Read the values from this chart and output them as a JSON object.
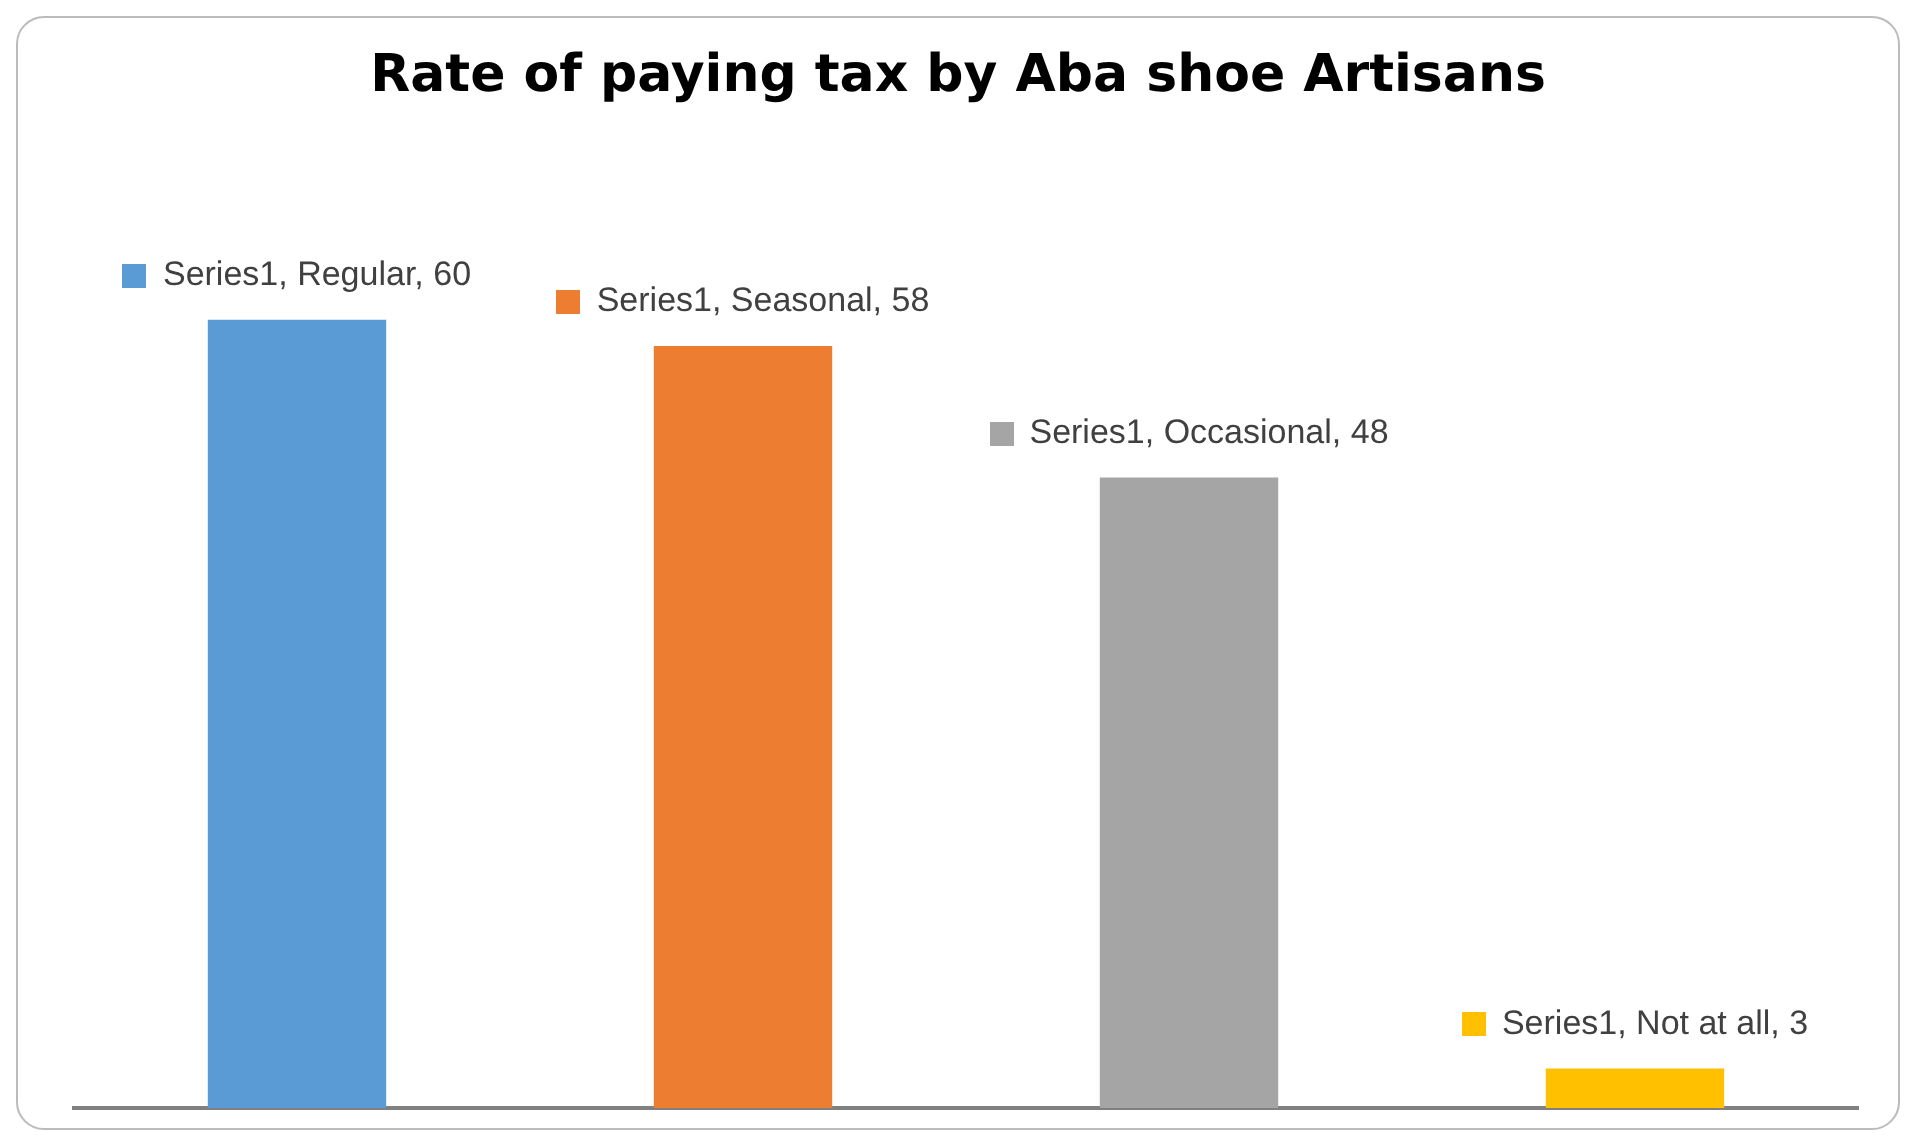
{
  "chart_data": {
    "type": "bar",
    "title": "Rate of paying tax by Aba shoe Artisans",
    "categories": [
      null,
      null,
      null,
      null
    ],
    "values": [
      60,
      58,
      48,
      3
    ],
    "colors": [
      "#5b9bd5",
      "#ed7d31",
      "#a5a5a5",
      "#ffc000"
    ],
    "value_labels": [
      "Series1, Regular, 60",
      "Series1, Seasonal, 58",
      "Series1, Occasional, 48",
      "Series1, Not at all, 3"
    ],
    "relative": false,
    "grid": false,
    "legend": false
  }
}
